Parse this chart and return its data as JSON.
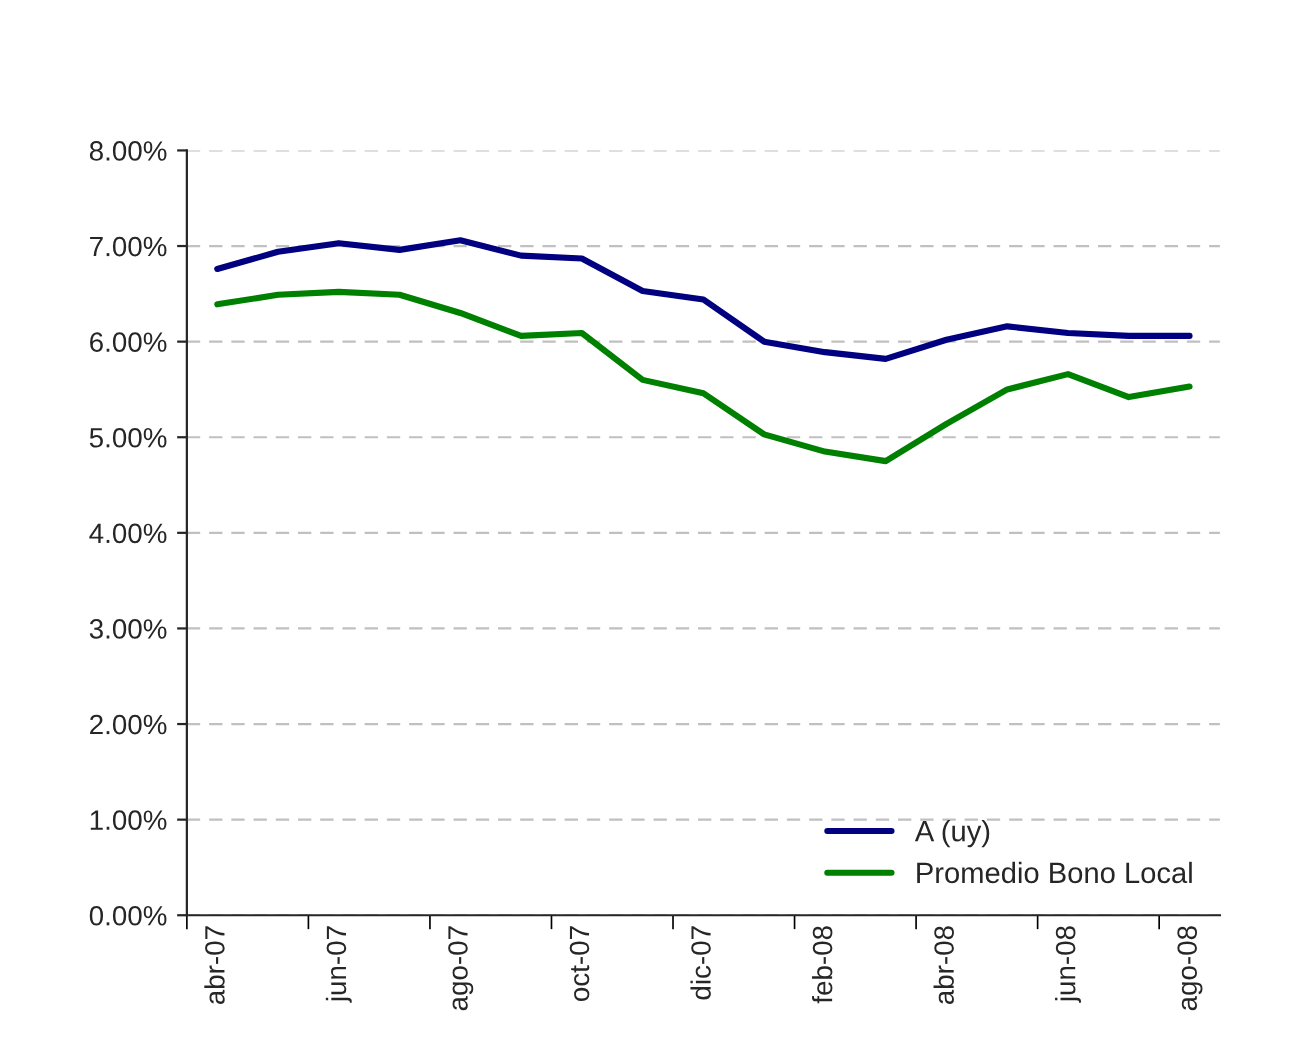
{
  "chart_data": {
    "type": "line",
    "categories": [
      "abr-07",
      null,
      "jun-07",
      null,
      "ago-07",
      null,
      "oct-07",
      null,
      "dic-07",
      null,
      "feb-08",
      null,
      "abr-08",
      null,
      "jun-08",
      null,
      "ago-08"
    ],
    "series": [
      {
        "name": "A (uy)",
        "color": "#000080",
        "values": [
          6.76,
          6.94,
          7.03,
          6.96,
          7.06,
          6.9,
          6.87,
          6.53,
          6.44,
          6.0,
          5.89,
          5.82,
          6.02,
          6.16,
          6.09,
          6.06,
          6.06
        ]
      },
      {
        "name": "Promedio Bono Local",
        "color": "#008000",
        "values": [
          6.39,
          6.49,
          6.52,
          6.49,
          6.3,
          6.06,
          6.09,
          5.6,
          5.46,
          5.03,
          4.85,
          4.75,
          5.14,
          5.5,
          5.66,
          5.42,
          5.53
        ]
      }
    ],
    "ylim": [
      0,
      8
    ],
    "yticks": [
      {
        "value": 0,
        "label": "0.00%"
      },
      {
        "value": 1,
        "label": "1.00%"
      },
      {
        "value": 2,
        "label": "2.00%"
      },
      {
        "value": 3,
        "label": "3.00%"
      },
      {
        "value": 4,
        "label": "4.00%"
      },
      {
        "value": 5,
        "label": "5.00%"
      },
      {
        "value": 6,
        "label": "6.00%"
      },
      {
        "value": 7,
        "label": "7.00%"
      },
      {
        "value": 8,
        "label": "8.00%"
      }
    ],
    "grid": "y",
    "legend": "bottom right",
    "marker": "none",
    "line_style": "solid"
  }
}
